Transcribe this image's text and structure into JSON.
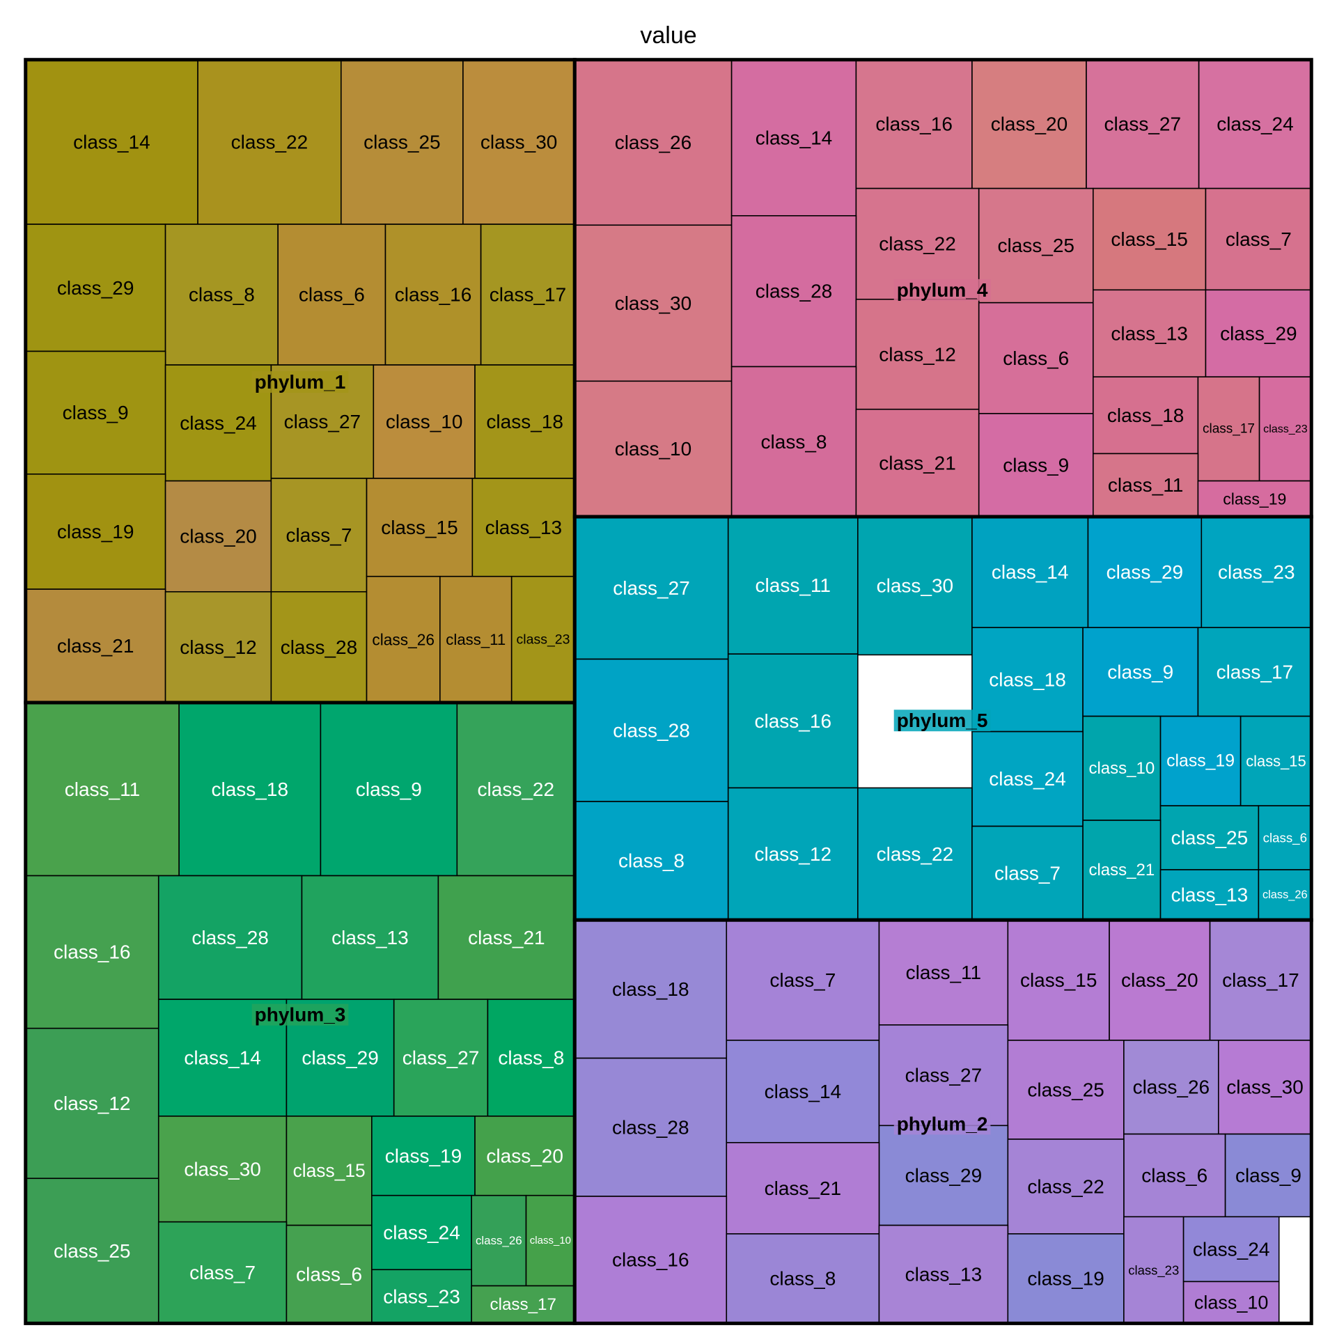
{
  "chart_data": {
    "type": "treemap",
    "title": "value",
    "phyla": [
      {
        "name": "phylum_1",
        "color": "#a39519",
        "classes": [
          "class_14",
          "class_22",
          "class_25",
          "class_30",
          "class_29",
          "class_8",
          "class_6",
          "class_16",
          "class_17",
          "class_9",
          "class_24",
          "class_27",
          "class_10",
          "class_18",
          "class_19",
          "class_20",
          "class_7",
          "class_15",
          "class_13",
          "class_21",
          "class_12",
          "class_28",
          "class_26",
          "class_11",
          "class_23"
        ]
      },
      {
        "name": "phylum_4",
        "color": "#d6708f",
        "classes": [
          "class_26",
          "class_14",
          "class_16",
          "class_20",
          "class_27",
          "class_24",
          "class_30",
          "class_22",
          "class_25",
          "class_15",
          "class_7",
          "class_28",
          "class_12",
          "class_6",
          "class_13",
          "class_29",
          "class_10",
          "class_8",
          "class_21",
          "class_9",
          "class_18",
          "class_17",
          "class_23",
          "class_11",
          "class_19"
        ]
      },
      {
        "name": "phylum_3",
        "color": "#22a35c",
        "classes": [
          "class_11",
          "class_18",
          "class_9",
          "class_22",
          "class_16",
          "class_28",
          "class_13",
          "class_21",
          "class_12",
          "class_14",
          "class_29",
          "class_27",
          "class_8",
          "class_30",
          "class_15",
          "class_19",
          "class_20",
          "class_25",
          "class_7",
          "class_6",
          "class_24",
          "class_26",
          "class_10",
          "class_23",
          "class_17"
        ]
      },
      {
        "name": "phylum_5",
        "color": "#00a5b8",
        "classes": [
          "class_27",
          "class_11",
          "class_30",
          "class_14",
          "class_29",
          "class_23",
          "class_18",
          "class_9",
          "class_17",
          "class_28",
          "class_16",
          "class_10",
          "class_19",
          "class_15",
          "class_24",
          "class_25",
          "class_6",
          "class_8",
          "class_12",
          "class_22",
          "class_7",
          "class_21",
          "class_13",
          "class_26"
        ]
      },
      {
        "name": "phylum_2",
        "color": "#a584d6",
        "classes": [
          "class_18",
          "class_7",
          "class_11",
          "class_15",
          "class_20",
          "class_17",
          "class_28",
          "class_14",
          "class_27",
          "class_25",
          "class_26",
          "class_30",
          "class_29",
          "class_6",
          "class_9",
          "class_21",
          "class_22",
          "class_16",
          "class_8",
          "class_13",
          "class_19",
          "class_23",
          "class_24",
          "class_10"
        ]
      }
    ]
  }
}
